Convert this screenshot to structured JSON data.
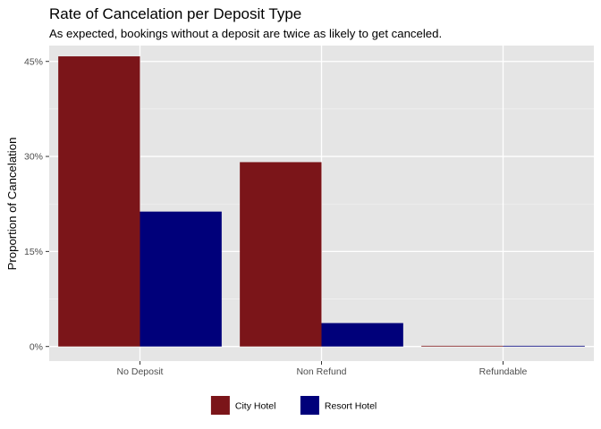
{
  "chart_data": {
    "type": "bar",
    "title": "Rate of Cancelation per Deposit Type",
    "subtitle": "As expected, bookings without a deposit are twice as likely to get canceled.",
    "xlabel": "",
    "ylabel": "Proportion of Cancelation",
    "categories": [
      "No Deposit",
      "Non Refund",
      "Refundable"
    ],
    "series": [
      {
        "name": "City Hotel",
        "values": [
          0.458,
          0.291,
          0.0
        ],
        "color": "#7b1519"
      },
      {
        "name": "Resort Hotel",
        "values": [
          0.213,
          0.037,
          0.0
        ],
        "color": "#00007a"
      }
    ],
    "yticks": [
      0,
      0.15,
      0.3,
      0.45
    ],
    "ytick_labels": [
      "0%",
      "15%",
      "30%",
      "45%"
    ],
    "ylim": [
      -0.023,
      0.475
    ],
    "grid": true,
    "legend_position": "bottom",
    "panel_background": "#e5e5e5"
  }
}
